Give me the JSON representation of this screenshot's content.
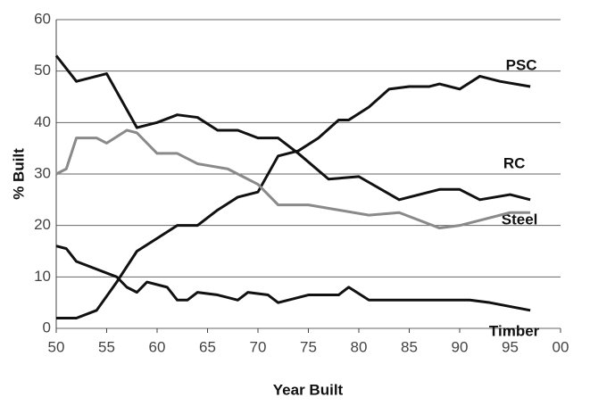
{
  "chart_data": {
    "type": "line",
    "xlabel": "Year Built",
    "ylabel": "% Built",
    "xlim": [
      50,
      100
    ],
    "ylim": [
      0,
      60
    ],
    "xticks": [
      50,
      55,
      60,
      65,
      70,
      75,
      80,
      85,
      90,
      95,
      {
        "value": 100,
        "label": "00"
      }
    ],
    "yticks": [
      0,
      10,
      20,
      30,
      40,
      50,
      60
    ],
    "grid": true,
    "series": [
      {
        "name": "PSC",
        "color": "#111111",
        "x": [
          50,
          52,
          54,
          56,
          58,
          60,
          62,
          64,
          66,
          68,
          70,
          72,
          74,
          76,
          78,
          79,
          81,
          83,
          85,
          87,
          88,
          90,
          92,
          94,
          97
        ],
        "values": [
          2,
          2,
          3.5,
          9,
          15,
          17.5,
          20,
          20,
          23,
          25.5,
          26.5,
          33.5,
          34.5,
          37,
          40.5,
          40.5,
          43,
          46.5,
          47,
          47,
          47.5,
          46.5,
          49,
          48,
          47
        ]
      },
      {
        "name": "Steel",
        "color": "#111111",
        "x": [
          50,
          52,
          55,
          58,
          60,
          62,
          64,
          66,
          68,
          70,
          72,
          74,
          77,
          80,
          84,
          88,
          90,
          92,
          95,
          97
        ],
        "values": [
          53,
          48,
          49.5,
          39,
          40,
          41.5,
          41,
          38.5,
          38.5,
          37,
          37,
          34,
          29,
          29.5,
          25,
          27,
          27,
          25,
          26,
          25
        ]
      },
      {
        "name": "RC",
        "color": "#8a8a8a",
        "x": [
          50,
          51,
          52,
          54,
          55,
          57,
          58,
          60,
          62,
          64,
          67,
          70,
          72,
          75,
          78,
          81,
          84,
          88,
          90,
          92,
          95,
          97
        ],
        "values": [
          30,
          31,
          37,
          37,
          36,
          38.5,
          38,
          34,
          34,
          32,
          31,
          28,
          24,
          24,
          23,
          22,
          22.5,
          19.5,
          20,
          21,
          22.5,
          22.5
        ]
      },
      {
        "name": "Timber",
        "color": "#111111",
        "x": [
          50,
          51,
          52,
          56,
          57,
          58,
          59,
          61,
          62,
          63,
          64,
          66,
          68,
          69,
          71,
          72,
          75,
          78,
          79,
          81,
          91,
          93,
          97
        ],
        "values": [
          16,
          15.5,
          13,
          10,
          8,
          7,
          9,
          8,
          5.5,
          5.5,
          7,
          6.5,
          5.5,
          7,
          6.5,
          5,
          6.5,
          6.5,
          8,
          5.5,
          5.5,
          5,
          3.5
        ]
      }
    ]
  }
}
